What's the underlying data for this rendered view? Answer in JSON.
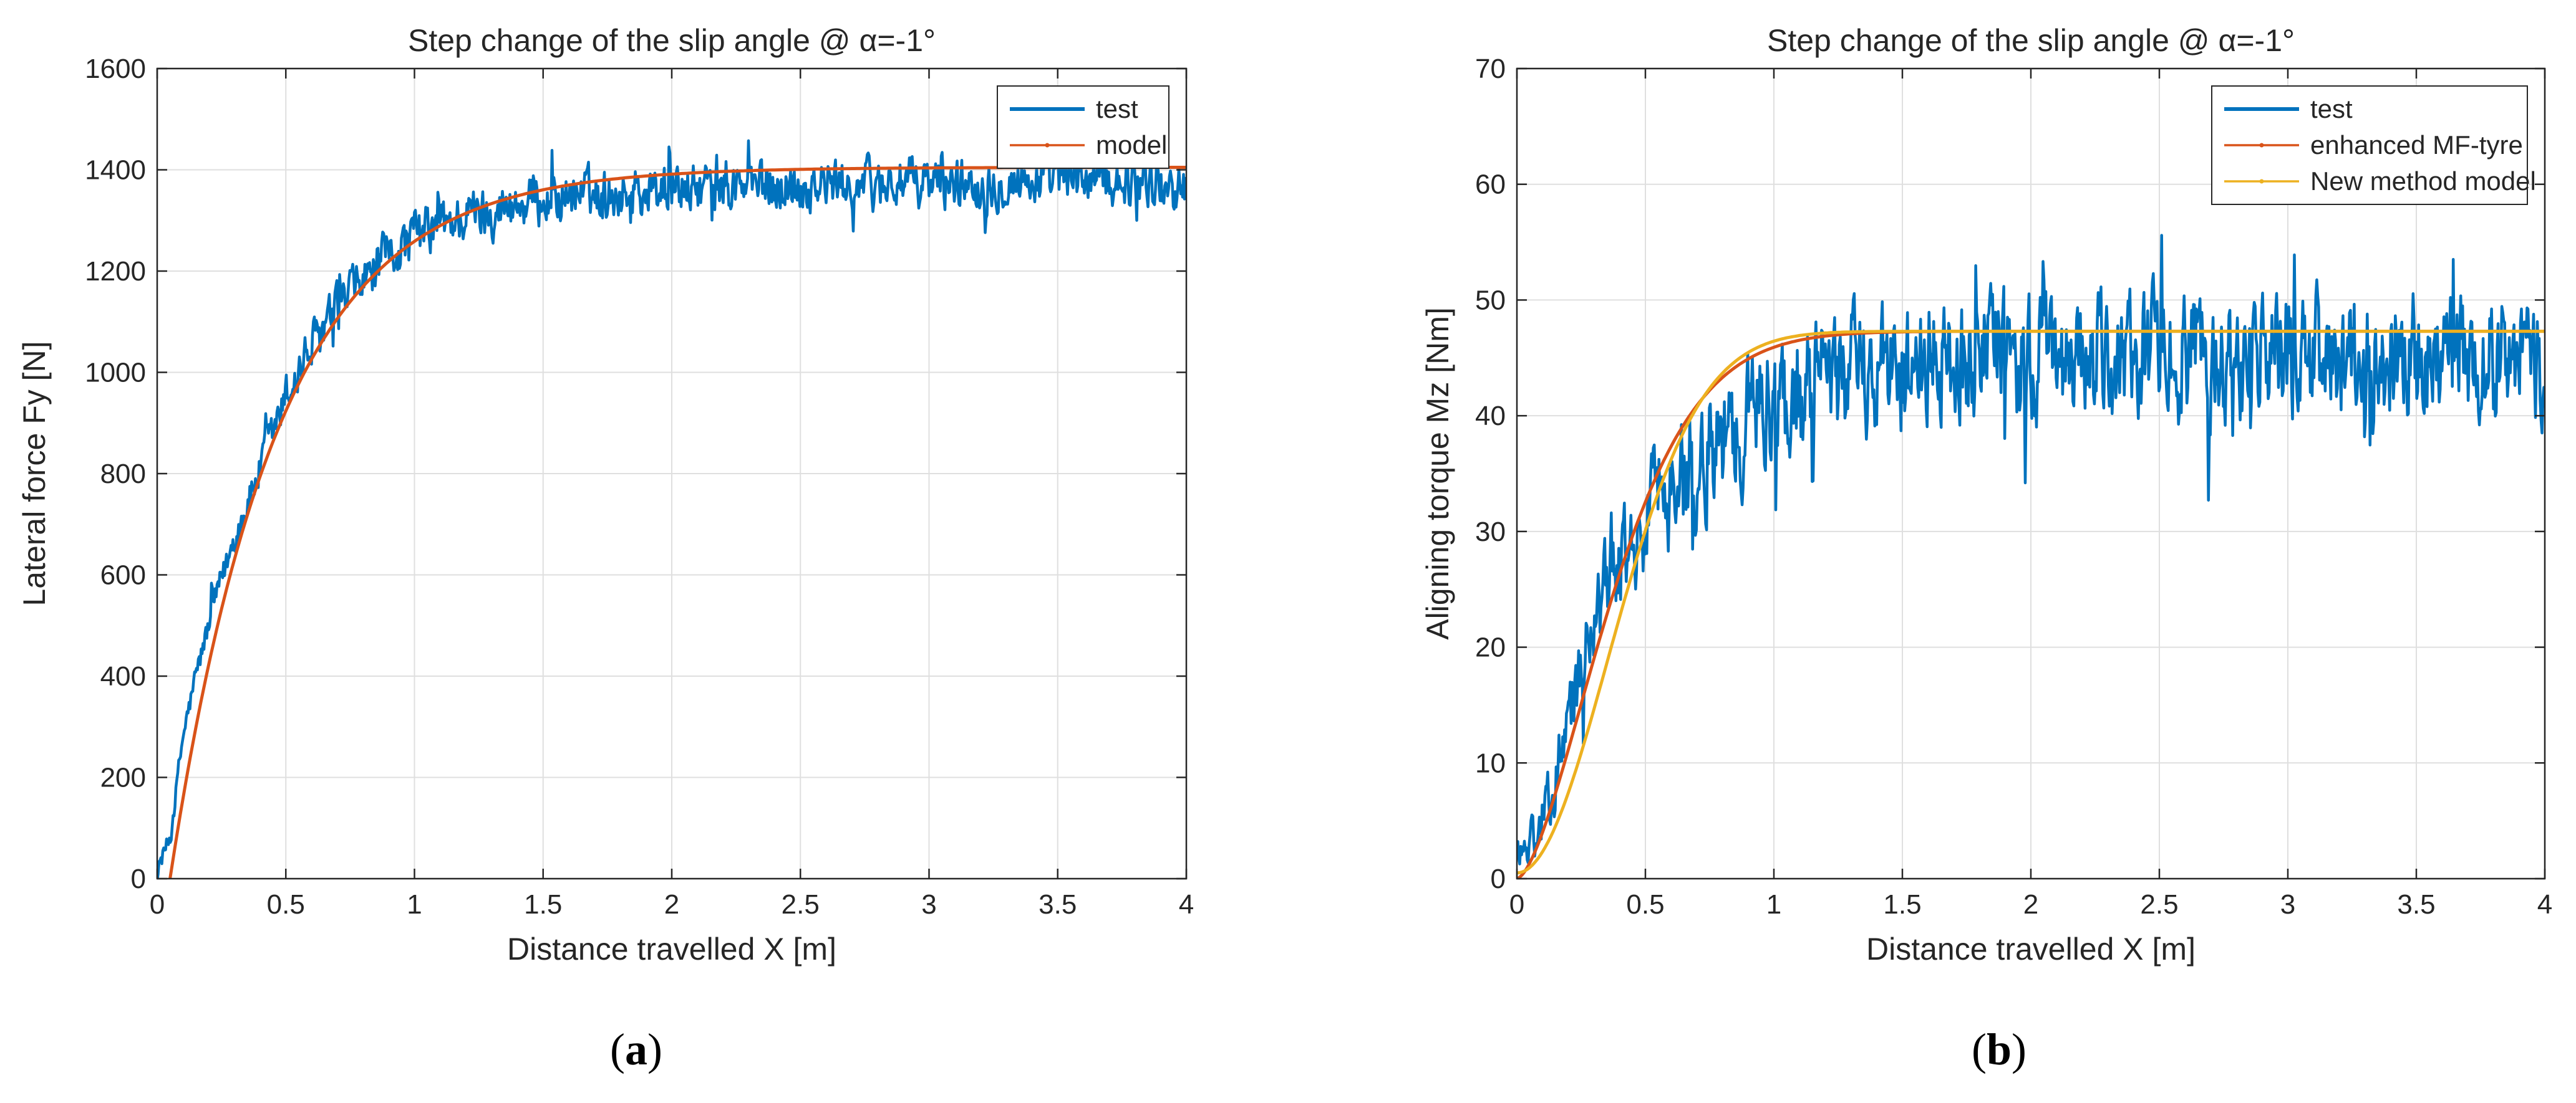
{
  "chart_data": [
    {
      "type": "line",
      "panel_label": "a",
      "title": "Step change of the slip angle @ α=-1°",
      "xlabel": "Distance travelled X [m]",
      "ylabel": "Lateral force Fy [N]",
      "xlim": [
        0,
        4
      ],
      "ylim": [
        0,
        1600
      ],
      "xticks": [
        0,
        0.5,
        1,
        1.5,
        2,
        2.5,
        3,
        3.5,
        4
      ],
      "yticks": [
        0,
        200,
        400,
        600,
        800,
        1000,
        1200,
        1400,
        1600
      ],
      "xtick_labels": [
        "0",
        "0.5",
        "1",
        "1.5",
        "2",
        "2.5",
        "3",
        "3.5",
        "4"
      ],
      "ytick_labels": [
        "0",
        "200",
        "400",
        "600",
        "800",
        "1000",
        "1200",
        "1400",
        "1600"
      ],
      "grid": true,
      "legend_position": "top-right",
      "series": [
        {
          "name": "test",
          "color": "#0072BD",
          "noisy": true,
          "x": [
            0,
            0.05,
            0.1,
            0.15,
            0.2,
            0.25,
            0.3,
            0.35,
            0.4,
            0.45,
            0.5,
            0.6,
            0.7,
            0.8,
            0.9,
            1.0,
            1.1,
            1.2,
            1.3,
            1.4,
            1.5,
            1.6,
            1.8,
            2.0,
            2.2,
            2.4,
            2.6,
            2.8,
            3.0,
            3.2,
            3.4,
            3.6,
            3.8,
            4.0
          ],
          "values": [
            20,
            80,
            280,
            400,
            500,
            590,
            670,
            740,
            810,
            880,
            950,
            1050,
            1120,
            1180,
            1230,
            1270,
            1290,
            1310,
            1320,
            1330,
            1340,
            1350,
            1355,
            1360,
            1365,
            1370,
            1370,
            1372,
            1375,
            1375,
            1378,
            1380,
            1380,
            1360
          ],
          "noise_amp": 55
        },
        {
          "name": "model",
          "color": "#D95319",
          "noisy": false,
          "model": "exp",
          "params": {
            "x0": 0.05,
            "ymax": 1405,
            "tau": 0.42
          }
        }
      ]
    },
    {
      "type": "line",
      "panel_label": "b",
      "title": "Step change of the slip angle @ α=-1°",
      "xlabel": "Distance travelled X [m]",
      "ylabel": "Aligning torque Mz [Nm]",
      "xlim": [
        0,
        4
      ],
      "ylim": [
        0,
        70
      ],
      "xticks": [
        0,
        0.5,
        1,
        1.5,
        2,
        2.5,
        3,
        3.5,
        4
      ],
      "yticks": [
        0,
        10,
        20,
        30,
        40,
        50,
        60,
        70
      ],
      "xtick_labels": [
        "0",
        "0.5",
        "1",
        "1.5",
        "2",
        "2.5",
        "3",
        "3.5",
        "4"
      ],
      "ytick_labels": [
        "0",
        "10",
        "20",
        "30",
        "40",
        "50",
        "60",
        "70"
      ],
      "grid": true,
      "legend_position": "top-right",
      "series": [
        {
          "name": "test",
          "color": "#0072BD",
          "noisy": true,
          "x": [
            0,
            0.05,
            0.1,
            0.15,
            0.2,
            0.25,
            0.3,
            0.35,
            0.4,
            0.5,
            0.6,
            0.7,
            0.8,
            0.9,
            1.0,
            1.2,
            1.4,
            1.6,
            1.8,
            2.0,
            2.5,
            3.0,
            3.5,
            4.0
          ],
          "values": [
            2,
            3,
            5,
            9,
            14,
            18,
            22,
            25,
            28,
            31,
            34,
            36,
            38,
            40,
            41,
            43,
            44,
            44.5,
            45,
            45,
            45,
            45,
            45,
            45
          ],
          "noise_amp": 6
        },
        {
          "name": "enhanced MF-tyre",
          "color": "#D95319",
          "noisy": false,
          "model": "sigmoid",
          "params": {
            "ymax": 47.3,
            "k": 2.2,
            "p": 1.6,
            "y0": 0
          }
        },
        {
          "name": "New method model",
          "color": "#EDB120",
          "noisy": false,
          "model": "sigmoid",
          "params": {
            "ymax": 47.3,
            "k": 2.0,
            "p": 2.0,
            "y0": 0.5
          }
        }
      ]
    }
  ]
}
